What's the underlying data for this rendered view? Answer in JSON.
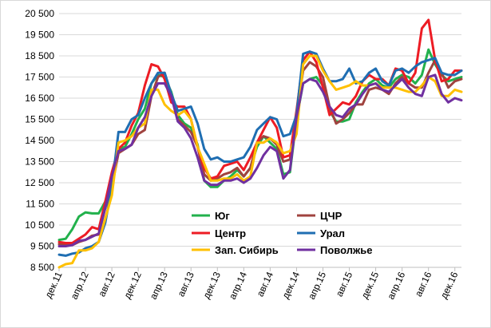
{
  "chart_data": {
    "type": "line",
    "title": "",
    "xlabel": "",
    "ylabel": "",
    "ylim": [
      8500,
      20500
    ],
    "y_ticks": [
      "8 500",
      "9 500",
      "10 500",
      "11 500",
      "12 500",
      "13 500",
      "14 500",
      "15 500",
      "16 500",
      "17 500",
      "18 500",
      "19 500",
      "20 500"
    ],
    "x_tick_labels": [
      "дек.11",
      "апр.12",
      "авг.12",
      "дек.12",
      "апр.13",
      "авг.13",
      "дек.13",
      "апр.14",
      "авг.14",
      "дек.14",
      "апр.15",
      "авг.15",
      "дек.15",
      "апр.16",
      "авг.16",
      "дек.16"
    ],
    "grid": "horizontal",
    "legend_position": "bottom-center",
    "series": [
      {
        "name": "Юг",
        "color": "#22b14c",
        "values": [
          9800,
          9850,
          10300,
          10900,
          11100,
          11050,
          11050,
          11600,
          12500,
          14100,
          14200,
          14800,
          15500,
          16000,
          17200,
          17600,
          17500,
          16800,
          15700,
          15300,
          15100,
          14300,
          12600,
          12300,
          12300,
          12600,
          12800,
          13100,
          12800,
          13200,
          14200,
          14700,
          14400,
          14100,
          12900,
          13000,
          15500,
          17200,
          17400,
          17500,
          17100,
          15900,
          15400,
          15400,
          15500,
          16300,
          16800,
          17200,
          17400,
          17100,
          17000,
          17400,
          17600,
          17500,
          17200,
          17600,
          18800,
          18100,
          17600,
          17300,
          17400,
          17500
        ]
      },
      {
        "name": "ЦЧР",
        "color": "#a0433f",
        "values": [
          9600,
          9600,
          9550,
          9700,
          9800,
          10000,
          10050,
          11300,
          12300,
          13900,
          14100,
          14300,
          14800,
          15000,
          16600,
          17500,
          17700,
          16700,
          15500,
          15200,
          14900,
          14200,
          12900,
          12600,
          12700,
          12900,
          13000,
          13200,
          12800,
          13200,
          14400,
          14700,
          14600,
          14300,
          13500,
          13600,
          15700,
          17800,
          18200,
          18000,
          17500,
          16100,
          15300,
          15500,
          15800,
          16200,
          16200,
          16900,
          17000,
          16900,
          16700,
          17200,
          17500,
          17200,
          17000,
          17000,
          17700,
          18300,
          17700,
          17000,
          17300,
          17400
        ]
      },
      {
        "name": "Центр",
        "color": "#ed1c24",
        "values": [
          9700,
          9650,
          9650,
          9850,
          10050,
          10400,
          10300,
          11600,
          13000,
          14100,
          14400,
          15200,
          15800,
          17100,
          18100,
          18000,
          17400,
          16300,
          16100,
          16100,
          15500,
          14200,
          13200,
          12700,
          12800,
          13300,
          13400,
          13500,
          13100,
          13700,
          14400,
          15000,
          15600,
          15100,
          13700,
          13800,
          15900,
          18300,
          18700,
          18200,
          17000,
          15700,
          16000,
          16300,
          16200,
          16600,
          17300,
          17600,
          17400,
          17400,
          17100,
          17900,
          17800,
          17200,
          17700,
          19800,
          20200,
          18300,
          17300,
          17400,
          17800,
          17800
        ]
      },
      {
        "name": "Урал",
        "color": "#1f6eb2",
        "values": [
          9100,
          9050,
          9150,
          9200,
          9400,
          9500,
          9700,
          10600,
          12300,
          14900,
          14900,
          15500,
          15700,
          16500,
          17200,
          17700,
          17700,
          16700,
          15900,
          16000,
          16100,
          15300,
          14100,
          13600,
          13700,
          13500,
          13500,
          13600,
          13700,
          14200,
          15000,
          15300,
          15600,
          15500,
          14700,
          14800,
          15700,
          18600,
          18700,
          18600,
          17900,
          17300,
          17300,
          17400,
          17900,
          17200,
          17300,
          17700,
          17900,
          17300,
          17100,
          17800,
          17900,
          17700,
          18000,
          18200,
          18300,
          18400,
          17700,
          17600,
          17600,
          17800
        ]
      },
      {
        "name": "Зап. Сибирь",
        "color": "#ffc000",
        "values": [
          8500,
          8650,
          8700,
          9300,
          9300,
          9400,
          9700,
          10800,
          11900,
          14400,
          14500,
          14700,
          15100,
          15300,
          16900,
          16900,
          16200,
          15900,
          15700,
          15900,
          15500,
          14200,
          13400,
          12600,
          12600,
          12700,
          12700,
          12900,
          12600,
          12800,
          14400,
          14400,
          14600,
          14400,
          13900,
          14000,
          14800,
          18100,
          18500,
          18500,
          17800,
          17300,
          16900,
          17000,
          17100,
          17300,
          17100,
          17100,
          17200,
          17000,
          17000,
          17000,
          16900,
          16800,
          16800,
          17100,
          17500,
          17300,
          16600,
          16600,
          16900,
          16800
        ]
      },
      {
        "name": "Поволжье",
        "color": "#7030a0",
        "values": [
          9500,
          9500,
          9550,
          9750,
          9800,
          9950,
          10100,
          11300,
          12800,
          14000,
          14100,
          14300,
          15100,
          15600,
          16600,
          17200,
          17200,
          16600,
          15400,
          15100,
          14600,
          13700,
          12600,
          12400,
          12400,
          12600,
          12600,
          12700,
          12500,
          12700,
          13200,
          13800,
          14200,
          14000,
          12700,
          13100,
          15600,
          17200,
          17400,
          17300,
          16800,
          16100,
          15700,
          15600,
          16000,
          16200,
          16700,
          17100,
          17200,
          16900,
          16800,
          17100,
          17400,
          17000,
          16700,
          16600,
          17500,
          17600,
          16700,
          16300,
          16500,
          16400
        ]
      }
    ]
  }
}
